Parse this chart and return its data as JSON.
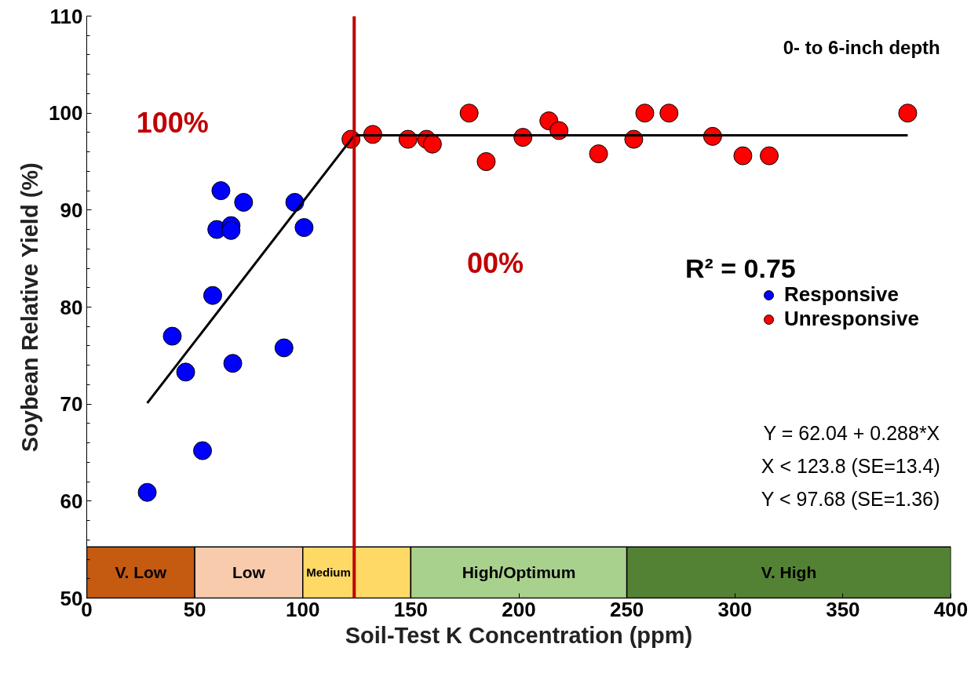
{
  "chart_data": {
    "type": "scatter",
    "xlabel": "Soil-Test K Concentration (ppm)",
    "ylabel": "Soybean Relative Yield (%)",
    "xlim": [
      0,
      400
    ],
    "ylim": [
      50,
      110
    ],
    "xticks": [
      0,
      50,
      100,
      150,
      200,
      250,
      300,
      350,
      400
    ],
    "yticks": [
      50,
      60,
      70,
      80,
      90,
      100,
      110
    ],
    "marker": "circle",
    "legend": "right",
    "grid": false,
    "series": [
      {
        "name": "Responsive",
        "color": "#0000ff",
        "x": [
          28,
          39.6,
          45.8,
          53.6,
          58.3,
          62.1,
          60.2,
          66.8,
          66.8,
          67.6,
          72.6,
          91.3,
          96.3,
          100.6
        ],
        "values": [
          60.9,
          77.0,
          73.3,
          65.2,
          81.2,
          92.0,
          88.0,
          88.4,
          87.9,
          74.2,
          90.8,
          75.8,
          90.8,
          88.2
        ]
      },
      {
        "name": "Unresponsive",
        "color": "#ff0000",
        "x": [
          122.3,
          132.4,
          148.7,
          157.3,
          160,
          177,
          184.9,
          201.9,
          213.9,
          218.6,
          236.9,
          253.2,
          258.3,
          269.5,
          289.7,
          303.7,
          315.9,
          380
        ],
        "values": [
          97.3,
          97.8,
          97.3,
          97.3,
          96.8,
          100,
          95.0,
          97.5,
          99.2,
          98.2,
          95.8,
          97.3,
          100,
          100,
          97.6,
          95.6,
          95.6,
          100
        ]
      },
      {
        "type": "line",
        "marker": "none",
        "color": "#000000",
        "x": [
          28,
          123.8,
          380
        ],
        "values": [
          70.1,
          97.7,
          97.7
        ]
      }
    ],
    "ref_lines": [
      {
        "axis": "x",
        "value": 123.8,
        "color": "#c00000"
      }
    ],
    "bands": [
      {
        "axis": "x",
        "from": 0,
        "to": 50,
        "label": "V. Low",
        "color": "#c55a11"
      },
      {
        "axis": "x",
        "from": 50,
        "to": 100,
        "label": "Low",
        "color": "#f8cbad"
      },
      {
        "axis": "x",
        "from": 100,
        "to": 150,
        "label": "Medium",
        "color": "#ffd966"
      },
      {
        "axis": "x",
        "from": 150,
        "to": 250,
        "label": "High/Optimum",
        "color": "#a9d18e"
      },
      {
        "axis": "x",
        "from": 250,
        "to": 400,
        "label": "V. High",
        "color": "#548235"
      }
    ],
    "annotations": [
      "100%",
      "00%",
      "0- to 6-inch depth",
      "R² = 0.75",
      "Y = 62.04 + 0.288*X",
      "X < 123.8 (SE=13.4)",
      "Y < 97.68 (SE=1.36)"
    ]
  }
}
